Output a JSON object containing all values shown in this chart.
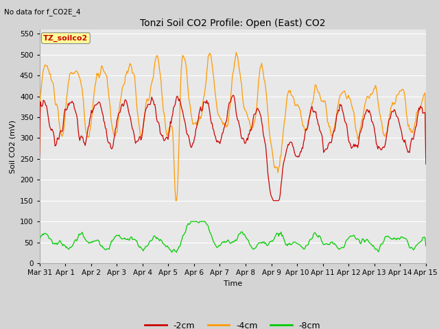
{
  "title": "Tonzi Soil CO2 Profile: Open (East) CO2",
  "subtitle": "No data for f_CO2E_4",
  "ylabel": "Soil CO2 (mV)",
  "xlabel": "Time",
  "ylim": [
    0,
    560
  ],
  "yticks": [
    0,
    50,
    100,
    150,
    200,
    250,
    300,
    350,
    400,
    450,
    500,
    550
  ],
  "legend_labels": [
    "-2cm",
    "-4cm",
    "-8cm"
  ],
  "legend_colors": [
    "#cc0000",
    "#ff9900",
    "#00cc00"
  ],
  "line_colors": {
    "cm2": "#cc0000",
    "cm4": "#ff9900",
    "cm8": "#00cc00"
  },
  "fig_bg": "#d4d4d4",
  "plot_bg": "#e8e8e8",
  "label_box_color": "#ffff99",
  "label_box_text": "TZ_soilco2",
  "label_box_text_color": "#cc0000",
  "grid_color": "#ffffff"
}
